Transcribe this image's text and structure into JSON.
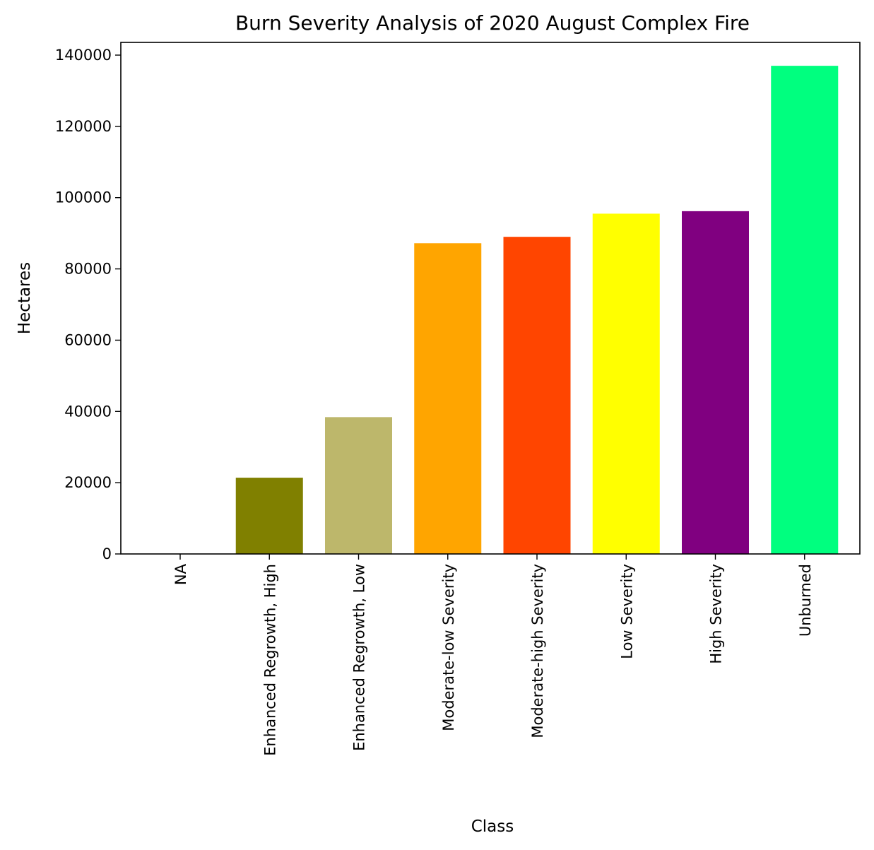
{
  "chart_data": {
    "type": "bar",
    "title": "Burn Severity Analysis of 2020 August Complex Fire",
    "xlabel": "Class",
    "ylabel": "Hectares",
    "ylim": [
      0,
      144000
    ],
    "yticks": [
      0,
      20000,
      40000,
      60000,
      80000,
      100000,
      120000,
      140000
    ],
    "categories": [
      "NA",
      "Enhanced Regrowth, High",
      "Enhanced Regrowth, Low",
      "Moderate-low Severity",
      "Moderate-high Severity",
      "Low Severity",
      "High Severity",
      "Unburned"
    ],
    "values": [
      0,
      21400,
      38400,
      87200,
      89000,
      95500,
      96200,
      137000
    ],
    "colors": [
      "#ffffff",
      "#808000",
      "#bdb76b",
      "#ffa500",
      "#ff4500",
      "#ffff00",
      "#800080",
      "#00ff7f"
    ],
    "grid": false,
    "legend": "none"
  }
}
